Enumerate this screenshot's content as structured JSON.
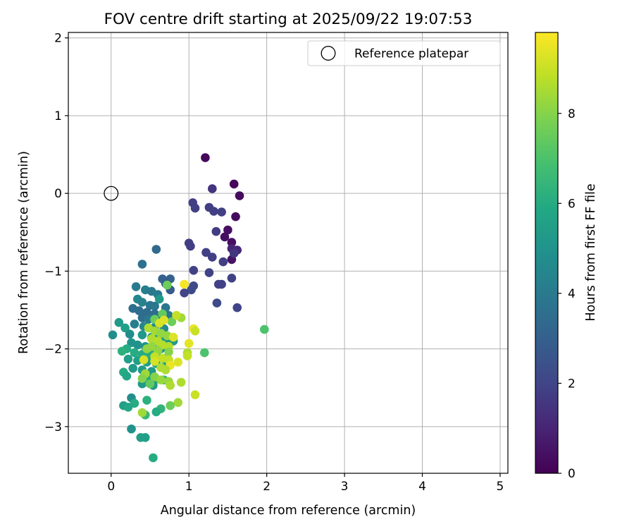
{
  "chart_data": {
    "type": "scatter",
    "title": "FOV centre drift starting at 2025/09/22 19:07:53",
    "xlabel": "Angular distance from reference (arcmin)",
    "ylabel": "Rotation from reference (arcmin)",
    "xlim": [
      -0.55,
      5.1
    ],
    "ylim": [
      -3.6,
      2.07
    ],
    "xticks": [
      0,
      1,
      2,
      3,
      4,
      5
    ],
    "xtick_labels": [
      "0",
      "1",
      "2",
      "3",
      "4",
      "5"
    ],
    "yticks": [
      2,
      1,
      0,
      -1,
      -2,
      -3
    ],
    "ytick_labels": [
      "2",
      "1",
      "0",
      "−1",
      "−2",
      "−3"
    ],
    "grid": true,
    "legend": {
      "position": "top-right",
      "entries": [
        {
          "label": "Reference platepar",
          "marker": "open-circle"
        }
      ]
    },
    "reference_point": {
      "x": 0,
      "y": 0
    },
    "colorbar": {
      "label": "Hours from first FF file",
      "range": [
        0,
        9.8
      ],
      "ticks": [
        0,
        2,
        4,
        6,
        8
      ],
      "tick_labels": [
        "0",
        "2",
        "4",
        "6",
        "8"
      ],
      "colormap": "viridis"
    },
    "points": [
      [
        1.21,
        0.46,
        0.2
      ],
      [
        1.58,
        0.12,
        0.2
      ],
      [
        1.65,
        -0.03,
        0.3
      ],
      [
        1.3,
        0.06,
        1.5
      ],
      [
        1.05,
        -0.12,
        1.8
      ],
      [
        1.08,
        -0.19,
        1.8
      ],
      [
        1.26,
        -0.18,
        1.8
      ],
      [
        1.32,
        -0.23,
        1.8
      ],
      [
        1.42,
        -0.24,
        1.8
      ],
      [
        1.6,
        -0.3,
        0.3
      ],
      [
        1.35,
        -0.49,
        1.7
      ],
      [
        1.5,
        -0.47,
        0.4
      ],
      [
        1.46,
        -0.56,
        0.4
      ],
      [
        1.55,
        -0.63,
        0.4
      ],
      [
        1.0,
        -0.64,
        1.8
      ],
      [
        1.02,
        -0.68,
        1.8
      ],
      [
        1.55,
        -0.71,
        1.0
      ],
      [
        1.62,
        -0.73,
        1.1
      ],
      [
        1.22,
        -0.76,
        1.8
      ],
      [
        1.3,
        -0.82,
        1.8
      ],
      [
        1.55,
        -0.85,
        0.5
      ],
      [
        1.44,
        -0.88,
        1.8
      ],
      [
        1.58,
        -0.77,
        1.5
      ],
      [
        1.06,
        -0.99,
        1.9
      ],
      [
        1.26,
        -1.02,
        1.9
      ],
      [
        1.55,
        -1.09,
        1.9
      ],
      [
        1.38,
        -1.17,
        1.9
      ],
      [
        1.42,
        -1.17,
        1.9
      ],
      [
        1.03,
        -1.24,
        2.2
      ],
      [
        1.06,
        -1.19,
        2.2
      ],
      [
        0.94,
        -1.28,
        2.0
      ],
      [
        1.62,
        -1.47,
        2.0
      ],
      [
        1.36,
        -1.41,
        2.2
      ],
      [
        0.58,
        -0.72,
        3.4
      ],
      [
        0.4,
        -0.91,
        3.6
      ],
      [
        0.66,
        -1.1,
        3.0
      ],
      [
        0.76,
        -1.1,
        3.0
      ],
      [
        0.7,
        -1.16,
        2.8
      ],
      [
        0.76,
        -1.24,
        2.8
      ],
      [
        0.32,
        -1.2,
        4.0
      ],
      [
        0.44,
        -1.24,
        4.2
      ],
      [
        0.52,
        -1.26,
        4.0
      ],
      [
        0.6,
        -1.3,
        4.0
      ],
      [
        0.34,
        -1.36,
        4.5
      ],
      [
        0.62,
        -1.36,
        5.2
      ],
      [
        0.4,
        -1.4,
        4.3
      ],
      [
        0.5,
        -1.44,
        3.8
      ],
      [
        0.56,
        -1.45,
        3.9
      ],
      [
        0.7,
        -1.47,
        3.8
      ],
      [
        0.28,
        -1.48,
        3.5
      ],
      [
        0.36,
        -1.51,
        3.5
      ],
      [
        0.46,
        -1.53,
        3.5
      ],
      [
        0.56,
        -1.55,
        3.5
      ],
      [
        0.66,
        -1.57,
        3.8
      ],
      [
        0.74,
        -1.57,
        3.8
      ],
      [
        0.4,
        -1.6,
        3.5
      ],
      [
        0.48,
        -1.62,
        4.0
      ],
      [
        0.6,
        -1.64,
        4.2
      ],
      [
        0.1,
        -1.66,
        5.3
      ],
      [
        0.3,
        -1.68,
        4.2
      ],
      [
        0.42,
        -1.71,
        4.5
      ],
      [
        0.56,
        -1.72,
        4.6
      ],
      [
        0.68,
        -1.74,
        4.7
      ],
      [
        0.18,
        -1.73,
        5.5
      ],
      [
        0.24,
        -1.81,
        4.8
      ],
      [
        0.02,
        -1.82,
        4.8
      ],
      [
        0.4,
        -1.82,
        5.2
      ],
      [
        0.52,
        -1.85,
        5.2
      ],
      [
        0.6,
        -1.87,
        5.3
      ],
      [
        0.7,
        -1.89,
        5.3
      ],
      [
        0.8,
        -1.9,
        5.3
      ],
      [
        0.26,
        -1.92,
        5.0
      ],
      [
        0.34,
        -1.95,
        5.0
      ],
      [
        0.44,
        -1.97,
        5.0
      ],
      [
        0.54,
        -1.99,
        5.1
      ],
      [
        0.64,
        -2.0,
        5.2
      ],
      [
        0.2,
        -2.0,
        6.0
      ],
      [
        0.14,
        -2.03,
        6.2
      ],
      [
        0.3,
        -2.05,
        6.0
      ],
      [
        0.4,
        -2.07,
        6.0
      ],
      [
        0.5,
        -2.08,
        6.0
      ],
      [
        0.6,
        -2.1,
        6.0
      ],
      [
        0.72,
        -2.11,
        6.1
      ],
      [
        0.22,
        -2.13,
        5.5
      ],
      [
        0.34,
        -2.15,
        5.5
      ],
      [
        0.46,
        -2.17,
        5.5
      ],
      [
        0.58,
        -2.19,
        5.6
      ],
      [
        0.7,
        -2.21,
        5.6
      ],
      [
        0.28,
        -2.25,
        5.3
      ],
      [
        0.4,
        -2.27,
        5.3
      ],
      [
        0.52,
        -2.29,
        5.3
      ],
      [
        0.16,
        -2.3,
        6.0
      ],
      [
        0.2,
        -2.35,
        5.8
      ],
      [
        0.46,
        -2.37,
        5.8
      ],
      [
        0.58,
        -2.39,
        6.0
      ],
      [
        0.68,
        -2.4,
        6.4
      ],
      [
        0.4,
        -2.45,
        5.3
      ],
      [
        0.54,
        -2.47,
        5.3
      ],
      [
        0.26,
        -2.63,
        4.8
      ],
      [
        0.46,
        -2.66,
        6.2
      ],
      [
        0.3,
        -2.7,
        6.0
      ],
      [
        0.16,
        -2.73,
        5.5
      ],
      [
        0.22,
        -2.75,
        5.8
      ],
      [
        0.64,
        -2.77,
        6.4
      ],
      [
        0.58,
        -2.81,
        6.0
      ],
      [
        0.44,
        -2.85,
        6.5
      ],
      [
        0.26,
        -3.03,
        5.0
      ],
      [
        0.38,
        -3.14,
        5.5
      ],
      [
        0.44,
        -3.14,
        5.5
      ],
      [
        0.54,
        -3.4,
        6.0
      ],
      [
        1.97,
        -1.75,
        7.0
      ],
      [
        1.2,
        -2.05,
        7.0
      ],
      [
        0.72,
        -1.18,
        7.6
      ],
      [
        0.66,
        -1.55,
        7.4
      ],
      [
        0.56,
        -1.62,
        7.6
      ],
      [
        0.78,
        -1.65,
        7.6
      ],
      [
        0.9,
        -1.6,
        8.4
      ],
      [
        0.84,
        -1.57,
        8.9
      ],
      [
        0.62,
        -1.67,
        9.2
      ],
      [
        0.68,
        -1.63,
        9.3
      ],
      [
        0.48,
        -1.73,
        8.6
      ],
      [
        0.56,
        -1.77,
        8.4
      ],
      [
        0.64,
        -1.8,
        8.2
      ],
      [
        0.72,
        -1.83,
        8.2
      ],
      [
        0.8,
        -1.85,
        9.3
      ],
      [
        0.94,
        -1.17,
        9.7
      ],
      [
        1.06,
        -1.74,
        9.5
      ],
      [
        1.08,
        -1.77,
        9.0
      ],
      [
        1.0,
        -1.93,
        9.4
      ],
      [
        0.52,
        -1.87,
        8.6
      ],
      [
        0.6,
        -1.9,
        8.7
      ],
      [
        0.66,
        -1.95,
        8.7
      ],
      [
        0.74,
        -1.97,
        8.7
      ],
      [
        0.52,
        -1.97,
        8.2
      ],
      [
        0.46,
        -2.0,
        8.2
      ],
      [
        0.6,
        -2.02,
        8.2
      ],
      [
        0.74,
        -2.04,
        8.0
      ],
      [
        0.98,
        -2.05,
        8.6
      ],
      [
        0.98,
        -2.09,
        8.9
      ],
      [
        0.56,
        -2.1,
        8.9
      ],
      [
        0.66,
        -2.12,
        8.9
      ],
      [
        0.74,
        -2.14,
        8.9
      ],
      [
        0.42,
        -2.14,
        9.2
      ],
      [
        0.56,
        -2.16,
        9.2
      ],
      [
        0.86,
        -2.17,
        9.3
      ],
      [
        0.76,
        -2.21,
        9.5
      ],
      [
        0.64,
        -2.24,
        8.6
      ],
      [
        0.7,
        -2.27,
        8.6
      ],
      [
        0.44,
        -2.32,
        8.4
      ],
      [
        0.56,
        -2.36,
        8.0
      ],
      [
        0.4,
        -2.38,
        8.0
      ],
      [
        0.64,
        -2.4,
        8.3
      ],
      [
        0.74,
        -2.42,
        8.3
      ],
      [
        0.9,
        -2.43,
        8.6
      ],
      [
        0.76,
        -2.47,
        8.6
      ],
      [
        0.5,
        -2.45,
        7.4
      ],
      [
        1.08,
        -2.59,
        9.0
      ],
      [
        0.86,
        -2.69,
        8.4
      ],
      [
        0.76,
        -2.73,
        7.6
      ],
      [
        0.4,
        -2.82,
        8.4
      ]
    ]
  }
}
